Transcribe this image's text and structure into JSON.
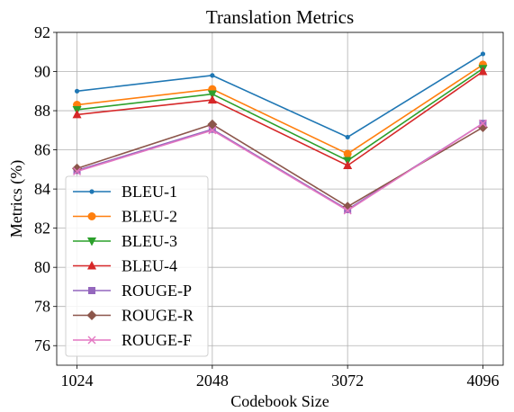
{
  "chart_data": {
    "type": "line",
    "title": "Translation Metrics",
    "xlabel": "Codebook Size",
    "ylabel": "Metrics (%)",
    "categories": [
      "1024",
      "2048",
      "3072",
      "4096"
    ],
    "xlim": [
      0.85,
      4.15
    ],
    "ylim": [
      75,
      92
    ],
    "yticks": [
      76,
      78,
      80,
      82,
      84,
      86,
      88,
      90,
      92
    ],
    "grid": true,
    "legend": "lower-left",
    "series": [
      {
        "name": "BLEU-1",
        "values": [
          89.0,
          89.8,
          86.65,
          90.9
        ],
        "color": "#1f77b4",
        "marker": "point"
      },
      {
        "name": "BLEU-2",
        "values": [
          88.3,
          89.1,
          85.8,
          90.35
        ],
        "color": "#ff7f0e",
        "marker": "circle"
      },
      {
        "name": "BLEU-3",
        "values": [
          88.05,
          88.85,
          85.45,
          90.15
        ],
        "color": "#2ca02c",
        "marker": "triangle-down"
      },
      {
        "name": "BLEU-4",
        "values": [
          87.8,
          88.55,
          85.2,
          90.0
        ],
        "color": "#d62728",
        "marker": "triangle-up"
      },
      {
        "name": "ROUGE-P",
        "values": [
          84.95,
          87.05,
          82.95,
          87.35
        ],
        "color": "#9467bd",
        "marker": "square"
      },
      {
        "name": "ROUGE-R",
        "values": [
          85.05,
          87.3,
          83.1,
          87.15
        ],
        "color": "#8c564b",
        "marker": "diamond"
      },
      {
        "name": "ROUGE-F",
        "values": [
          84.9,
          87.0,
          82.9,
          87.35
        ],
        "color": "#e377c2",
        "marker": "x"
      }
    ]
  }
}
